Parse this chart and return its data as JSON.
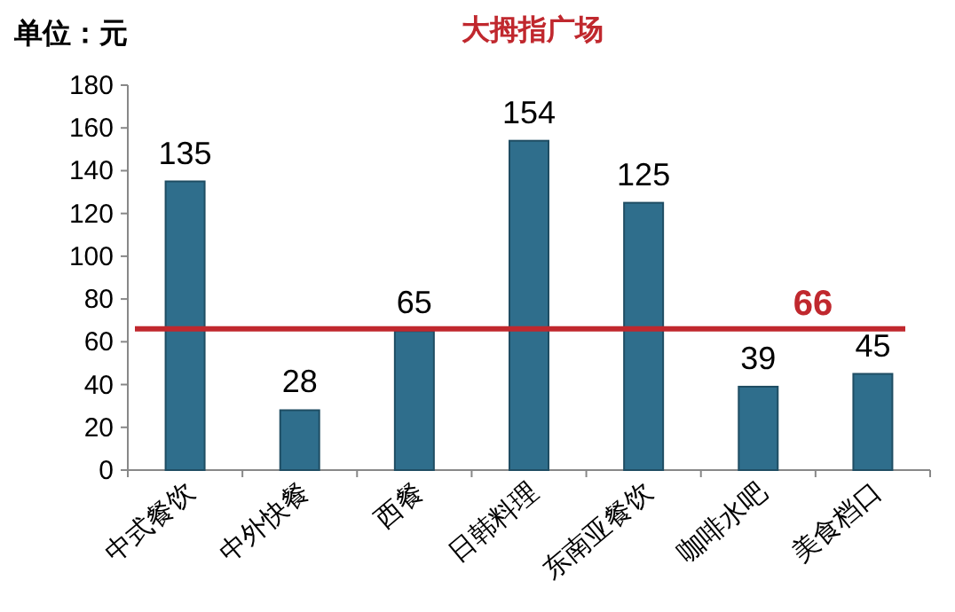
{
  "chart_data": {
    "type": "bar",
    "title": "大拇指广场",
    "ylabel": "单位：元",
    "categories": [
      "中式餐饮",
      "中外快餐",
      "西餐",
      "日韩料理",
      "东南亚餐饮",
      "咖啡水吧",
      "美食档口"
    ],
    "values": [
      135,
      28,
      65,
      154,
      125,
      39,
      45
    ],
    "color": "#2f6e8c",
    "ylim": [
      0,
      180
    ],
    "yticks": [
      0,
      20,
      40,
      60,
      80,
      100,
      120,
      140,
      160,
      180
    ],
    "data_labels": true,
    "grid": false,
    "ref_lines": [
      {
        "axis": "y",
        "value": 66,
        "label": "66",
        "color": "#c0282e",
        "line_style": "solid"
      }
    ]
  }
}
